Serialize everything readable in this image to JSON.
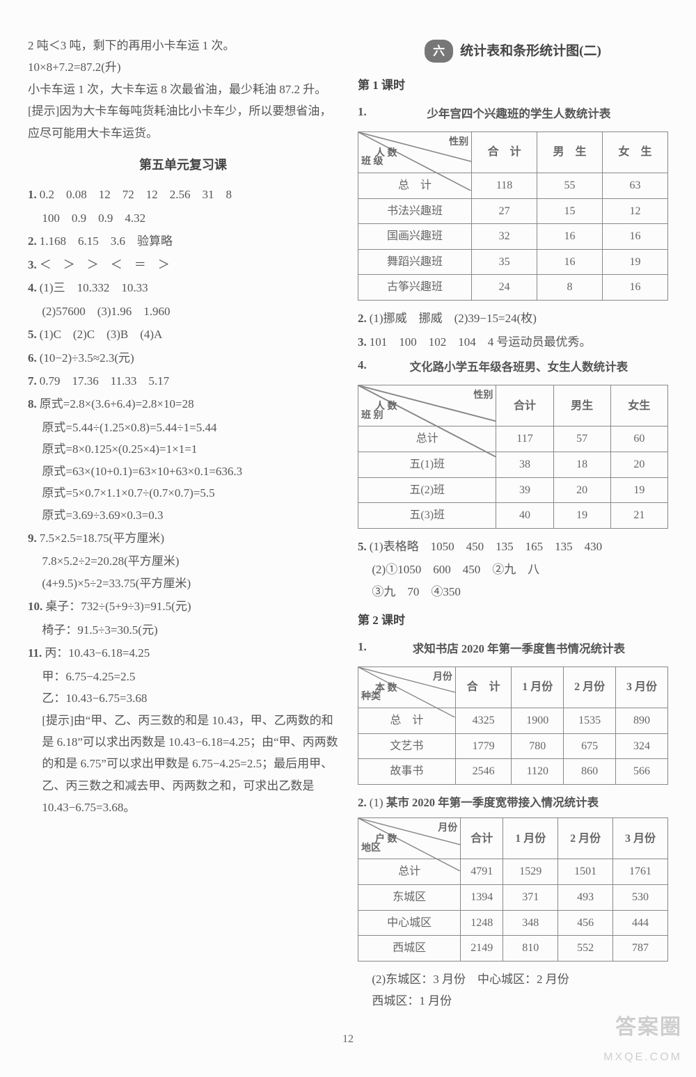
{
  "left": {
    "intro": [
      "2 吨＜3 吨，剩下的再用小卡车运 1 次。",
      "10×8+7.2=87.2(升)",
      "小卡车运 1 次，大卡车运 8 次最省油，最少耗油 87.2 升。",
      "[提示]因为大卡车每吨货耗油比小卡车少，所以要想省油，应尽可能用大卡车运货。"
    ],
    "review_title": "第五单元复习课",
    "items": {
      "i1a": "0.2　0.08　12　72　12　2.56　31　8",
      "i1b": "100　0.9　0.9　4.32",
      "i2": "1.168　6.15　3.6　验算略",
      "i3": "＜　＞　＞　＜　＝　＞",
      "i4a": "(1)三　10.332　10.33",
      "i4b": "(2)57600　(3)1.96　1.960",
      "i5": "(1)C　(2)C　(3)B　(4)A",
      "i6": "(10−2)÷3.5≈2.3(元)",
      "i7": "0.79　17.36　11.33　5.17",
      "i8a": "原式=2.8×(3.6+6.4)=2.8×10=28",
      "i8b": "原式=5.44÷(1.25×0.8)=5.44÷1=5.44",
      "i8c": "原式=8×0.125×(0.25×4)=1×1=1",
      "i8d": "原式=63×(10+0.1)=63×10+63×0.1=636.3",
      "i8e": "原式=5×0.7×1.1×0.7÷(0.7×0.7)=5.5",
      "i8f": "原式=3.69÷3.69×0.3=0.3",
      "i9a": "7.5×2.5=18.75(平方厘米)",
      "i9b": "7.8×5.2÷2=20.28(平方厘米)",
      "i9c": "(4+9.5)×5÷2=33.75(平方厘米)",
      "i10a": "桌子：732÷(5+9÷3)=91.5(元)",
      "i10b": "椅子：91.5÷3=30.5(元)",
      "i11a": "丙：10.43−6.18=4.25",
      "i11b": "甲：6.75−4.25=2.5",
      "i11c": "乙：10.43−6.75=3.68",
      "i11d": "[提示]由“甲、乙、丙三数的和是 10.43，甲、乙两数的和是 6.18”可以求出丙数是 10.43−6.18=4.25；由“甲、丙两数的和是 6.75”可以求出甲数是 6.75−4.25=2.5；最后用甲、乙、丙三数之和减去甲、丙两数之和，可求出乙数是 10.43−6.75=3.68。"
    }
  },
  "right": {
    "unit_pill": "六",
    "unit_title": "统计表和条形统计图(二)",
    "lesson1": "第 1 课时",
    "t1": {
      "title": "少年宫四个兴趣班的学生人数统计表",
      "diag_tr": "性别",
      "diag_mid": "人 数",
      "diag_bl": "班 级",
      "cols": [
        "合　计",
        "男　生",
        "女　生"
      ],
      "rows": [
        {
          "h": "总　计",
          "c": [
            "118",
            "55",
            "63"
          ]
        },
        {
          "h": "书法兴趣班",
          "c": [
            "27",
            "15",
            "12"
          ]
        },
        {
          "h": "国画兴趣班",
          "c": [
            "32",
            "16",
            "16"
          ]
        },
        {
          "h": "舞蹈兴趣班",
          "c": [
            "35",
            "16",
            "19"
          ]
        },
        {
          "h": "古筝兴趣班",
          "c": [
            "24",
            "8",
            "16"
          ]
        }
      ]
    },
    "q2": "(1)挪威　挪威　(2)39−15=24(枚)",
    "q3": "101　100　102　104　4 号运动员最优秀。",
    "t4": {
      "title": "文化路小学五年级各班男、女生人数统计表",
      "diag_tr": "性别",
      "diag_mid": "人 数",
      "diag_bl": "班 别",
      "cols": [
        "合计",
        "男生",
        "女生"
      ],
      "rows": [
        {
          "h": "总计",
          "c": [
            "117",
            "57",
            "60"
          ]
        },
        {
          "h": "五(1)班",
          "c": [
            "38",
            "18",
            "20"
          ]
        },
        {
          "h": "五(2)班",
          "c": [
            "39",
            "20",
            "19"
          ]
        },
        {
          "h": "五(3)班",
          "c": [
            "40",
            "19",
            "21"
          ]
        }
      ]
    },
    "q5a": "(1)表格略　1050　450　135　165　135　430",
    "q5b": "(2)①1050　600　450　②九　八",
    "q5c": "③九　70　④350",
    "lesson2": "第 2 课时",
    "t6": {
      "title": "求知书店 2020 年第一季度售书情况统计表",
      "diag_tr": "月份",
      "diag_mid": "本 数",
      "diag_bl": "种类",
      "cols": [
        "合　计",
        "1 月份",
        "2 月份",
        "3 月份"
      ],
      "rows": [
        {
          "h": "总　计",
          "c": [
            "4325",
            "1900",
            "1535",
            "890"
          ]
        },
        {
          "h": "文艺书",
          "c": [
            "1779",
            "780",
            "675",
            "324"
          ]
        },
        {
          "h": "故事书",
          "c": [
            "2546",
            "1120",
            "860",
            "566"
          ]
        }
      ]
    },
    "t7": {
      "pre": "(1)",
      "title": "某市 2020 年第一季度宽带接入情况统计表",
      "diag_tr": "月份",
      "diag_mid": "户 数",
      "diag_bl": "地区",
      "cols": [
        "合计",
        "1 月份",
        "2 月份",
        "3 月份"
      ],
      "rows": [
        {
          "h": "总计",
          "c": [
            "4791",
            "1529",
            "1501",
            "1761"
          ]
        },
        {
          "h": "东城区",
          "c": [
            "1394",
            "371",
            "493",
            "530"
          ]
        },
        {
          "h": "中心城区",
          "c": [
            "1248",
            "348",
            "456",
            "444"
          ]
        },
        {
          "h": "西城区",
          "c": [
            "2149",
            "810",
            "552",
            "787"
          ]
        }
      ]
    },
    "q7b": "(2)东城区：3 月份　中心城区：2 月份",
    "q7c": "西城区：1 月份"
  },
  "page": "12",
  "watermark": {
    "l1": "答案圈",
    "l2": "MXQE.COM"
  }
}
